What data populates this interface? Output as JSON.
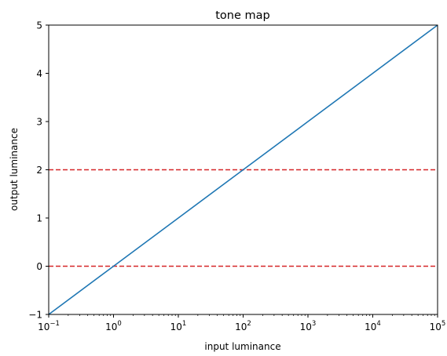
{
  "chart_data": {
    "type": "line",
    "title": "tone map",
    "xlabel": "input luminance",
    "ylabel": "output luminance",
    "x_scale": "log",
    "xlim": [
      0.1,
      100000
    ],
    "ylim": [
      -1,
      5
    ],
    "x_ticks": [
      {
        "value": 0.1,
        "base": "10",
        "exp": "−1"
      },
      {
        "value": 1,
        "base": "10",
        "exp": "0"
      },
      {
        "value": 10,
        "base": "10",
        "exp": "1"
      },
      {
        "value": 100,
        "base": "10",
        "exp": "2"
      },
      {
        "value": 1000,
        "base": "10",
        "exp": "3"
      },
      {
        "value": 10000,
        "base": "10",
        "exp": "4"
      },
      {
        "value": 100000,
        "base": "10",
        "exp": "5"
      }
    ],
    "y_ticks": [
      {
        "value": -1,
        "label": "−1"
      },
      {
        "value": 0,
        "label": "0"
      },
      {
        "value": 1,
        "label": "1"
      },
      {
        "value": 2,
        "label": "2"
      },
      {
        "value": 3,
        "label": "3"
      },
      {
        "value": 4,
        "label": "4"
      },
      {
        "value": 5,
        "label": "5"
      }
    ],
    "grid": false,
    "series": [
      {
        "x": [
          0.1,
          1,
          10,
          100,
          1000,
          10000,
          100000
        ],
        "y": [
          -1,
          0,
          1,
          2,
          3,
          4,
          5
        ],
        "color": "#1f77b4",
        "style": "solid"
      }
    ],
    "reference_lines": [
      {
        "orientation": "horizontal",
        "y": 0,
        "color": "#d62728",
        "style": "dashed"
      },
      {
        "orientation": "horizontal",
        "y": 2,
        "color": "#d62728",
        "style": "dashed"
      }
    ]
  }
}
